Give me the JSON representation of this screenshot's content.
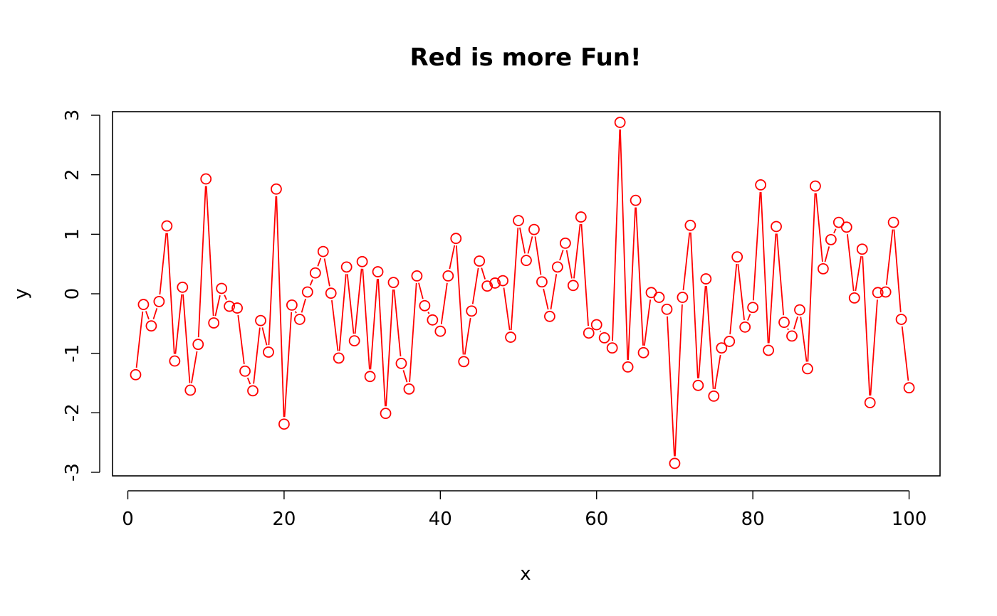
{
  "chart_data": {
    "type": "line",
    "title": "Red is more Fun!",
    "xlabel": "x",
    "ylabel": "y",
    "xlim": [
      -1.96,
      103.96
    ],
    "ylim": [
      -3.06,
      3.06
    ],
    "x_ticks": [
      0,
      20,
      40,
      60,
      80,
      100
    ],
    "y_ticks": [
      -3,
      -2,
      -1,
      0,
      1,
      2,
      3
    ],
    "x_tick_labels": [
      "0",
      "20",
      "40",
      "60",
      "80",
      "100"
    ],
    "y_tick_labels": [
      "-3",
      "-2",
      "-1",
      "0",
      "1",
      "2",
      "3"
    ],
    "plot_style": "both lines and points (type b)",
    "marker": "open circle",
    "grid": false,
    "color": "#ff0000",
    "series": [
      {
        "x": [
          1,
          2,
          3,
          4,
          5,
          6,
          7,
          8,
          9,
          10,
          11,
          12,
          13,
          14,
          15,
          16,
          17,
          18,
          19,
          20,
          21,
          22,
          23,
          24,
          25,
          26,
          27,
          28,
          29,
          30,
          31,
          32,
          33,
          34,
          35,
          36,
          37,
          38,
          39,
          40,
          41,
          42,
          43,
          44,
          45,
          46,
          47,
          48,
          49,
          50,
          51,
          52,
          53,
          54,
          55,
          56,
          57,
          58,
          59,
          60,
          61,
          62,
          63,
          64,
          65,
          66,
          67,
          68,
          69,
          70,
          71,
          72,
          73,
          74,
          75,
          76,
          77,
          78,
          79,
          80,
          81,
          82,
          83,
          84,
          85,
          86,
          87,
          88,
          89,
          90,
          91,
          92,
          93,
          94,
          95,
          96,
          97,
          98,
          99,
          100
        ],
        "values": [
          -1.36,
          -0.18,
          -0.54,
          -0.13,
          1.14,
          -1.13,
          0.11,
          -1.62,
          -0.85,
          1.93,
          -0.49,
          0.09,
          -0.21,
          -0.24,
          -1.3,
          -1.63,
          -0.45,
          -0.98,
          1.76,
          -2.19,
          -0.19,
          -0.43,
          0.03,
          0.35,
          0.71,
          0.01,
          -1.08,
          0.45,
          -0.79,
          0.54,
          -1.39,
          0.37,
          -2.01,
          0.19,
          -1.17,
          -1.6,
          0.3,
          -0.2,
          -0.44,
          -0.63,
          0.3,
          0.93,
          -1.14,
          -0.29,
          0.55,
          0.13,
          0.18,
          0.22,
          -0.73,
          1.23,
          0.56,
          1.08,
          0.2,
          -0.38,
          0.45,
          0.85,
          0.14,
          1.29,
          -0.66,
          -0.52,
          -0.74,
          -0.91,
          2.88,
          -1.23,
          1.57,
          -0.99,
          0.02,
          -0.06,
          -0.26,
          -2.85,
          -0.06,
          1.15,
          -1.54,
          0.25,
          -1.72,
          -0.91,
          -0.8,
          0.62,
          -0.56,
          -0.23,
          1.83,
          -0.95,
          1.13,
          -0.48,
          -0.71,
          -0.27,
          -1.26,
          1.81,
          0.42,
          0.91,
          1.2,
          1.12,
          -0.07,
          0.75,
          -1.83,
          0.02,
          0.03,
          1.2,
          -0.43,
          -1.58
        ]
      }
    ]
  }
}
